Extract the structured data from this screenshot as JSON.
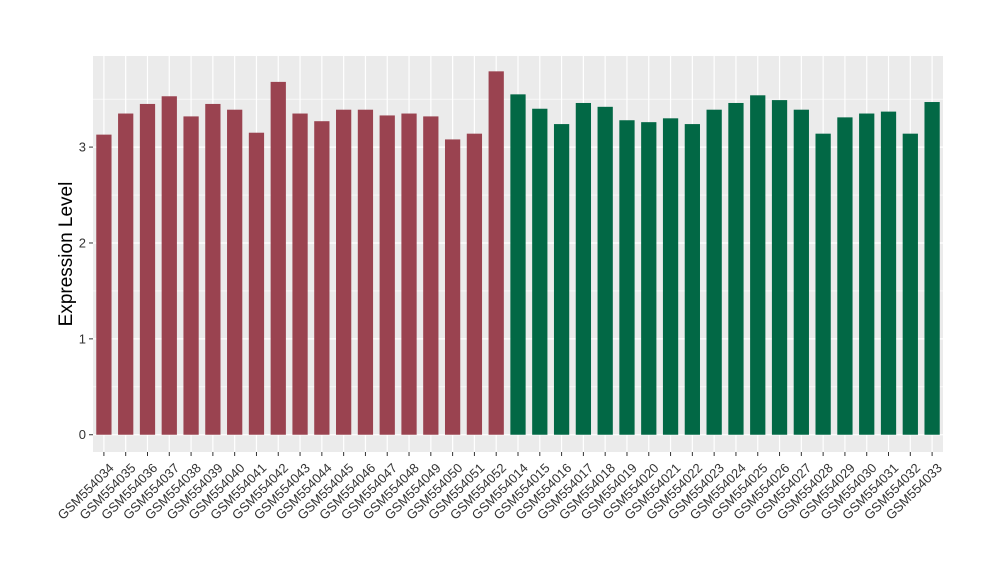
{
  "chart_data": {
    "type": "bar",
    "title": "",
    "xlabel": "",
    "ylabel": "Expression Level",
    "ylim": [
      -0.18,
      3.95
    ],
    "yticks": [
      0,
      1,
      2,
      3
    ],
    "grid": true,
    "legend": "none",
    "colors": {
      "panel_bg": "#EBEBEB",
      "grid": "#FFFFFF",
      "group_a": "#9A4350",
      "group_b": "#026845"
    },
    "categories": [
      "GSM554034",
      "GSM554035",
      "GSM554036",
      "GSM554037",
      "GSM554038",
      "GSM554039",
      "GSM554040",
      "GSM554041",
      "GSM554042",
      "GSM554043",
      "GSM554044",
      "GSM554045",
      "GSM554046",
      "GSM554047",
      "GSM554048",
      "GSM554049",
      "GSM554050",
      "GSM554051",
      "GSM554052",
      "GSM554014",
      "GSM554015",
      "GSM554016",
      "GSM554017",
      "GSM554018",
      "GSM554019",
      "GSM554020",
      "GSM554021",
      "GSM554022",
      "GSM554023",
      "GSM554024",
      "GSM554025",
      "GSM554026",
      "GSM554027",
      "GSM554028",
      "GSM554029",
      "GSM554030",
      "GSM554031",
      "GSM554032",
      "GSM554033"
    ],
    "values": [
      3.13,
      3.35,
      3.45,
      3.53,
      3.32,
      3.45,
      3.39,
      3.15,
      3.68,
      3.35,
      3.27,
      3.39,
      3.39,
      3.33,
      3.35,
      3.32,
      3.08,
      3.14,
      3.79,
      3.55,
      3.4,
      3.24,
      3.46,
      3.42,
      3.28,
      3.26,
      3.3,
      3.24,
      3.39,
      3.46,
      3.54,
      3.49,
      3.39,
      3.14,
      3.31,
      3.35,
      3.37,
      3.14,
      3.47
    ],
    "groups": [
      "a",
      "a",
      "a",
      "a",
      "a",
      "a",
      "a",
      "a",
      "a",
      "a",
      "a",
      "a",
      "a",
      "a",
      "a",
      "a",
      "a",
      "a",
      "a",
      "b",
      "b",
      "b",
      "b",
      "b",
      "b",
      "b",
      "b",
      "b",
      "b",
      "b",
      "b",
      "b",
      "b",
      "b",
      "b",
      "b",
      "b",
      "b",
      "b"
    ]
  }
}
